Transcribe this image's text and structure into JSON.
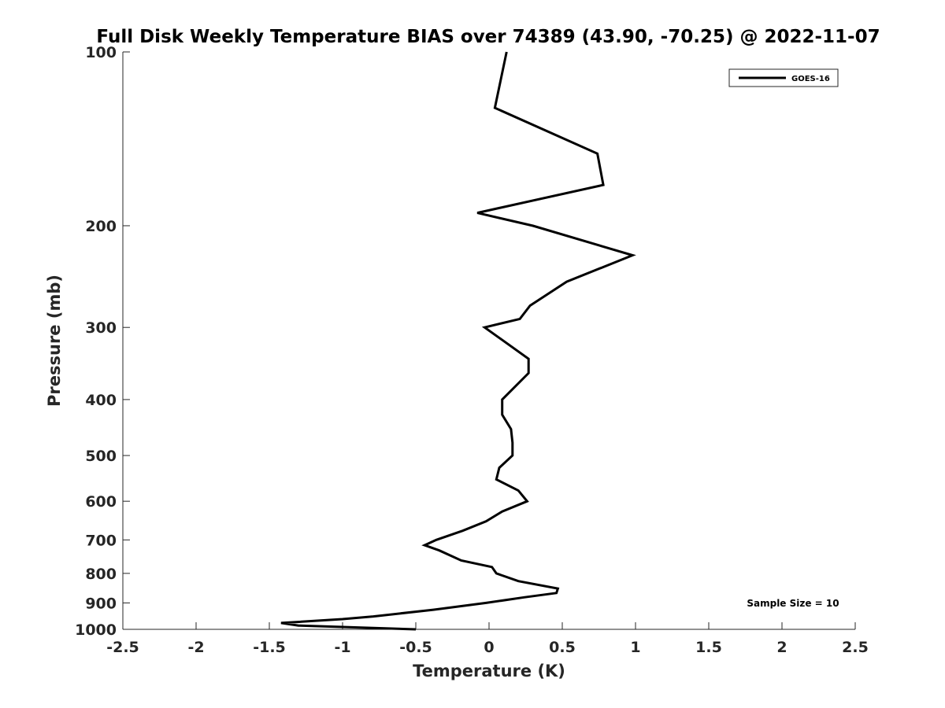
{
  "chart_data": {
    "type": "line",
    "title": "Full Disk Weekly Temperature BIAS over 74389 (43.90, -70.25) @ 2022-11-07",
    "xlabel": "Temperature (K)",
    "ylabel": "Pressure (mb)",
    "xlim": [
      -2.5,
      2.5
    ],
    "ylim": [
      100,
      1000
    ],
    "y_scale": "log",
    "y_reversed": true,
    "x_ticks": [
      "-2.5",
      "-2",
      "-1.5",
      "-1",
      "-0.5",
      "0",
      "0.5",
      "1",
      "1.5",
      "2",
      "2.5"
    ],
    "y_ticks": [
      "100",
      "200",
      "300",
      "400",
      "500",
      "600",
      "700",
      "800",
      "900",
      "1000"
    ],
    "grid": false,
    "legend_position": "top-right",
    "annotation": "Sample Size = 10",
    "series": [
      {
        "name": "GOES-16",
        "color": "#000000",
        "points": [
          {
            "x": 0.12,
            "y": 100
          },
          {
            "x": 0.04,
            "y": 125
          },
          {
            "x": 0.74,
            "y": 150
          },
          {
            "x": 0.78,
            "y": 170
          },
          {
            "x": -0.08,
            "y": 190
          },
          {
            "x": 0.3,
            "y": 200
          },
          {
            "x": 0.98,
            "y": 225
          },
          {
            "x": 0.53,
            "y": 250
          },
          {
            "x": 0.28,
            "y": 275
          },
          {
            "x": 0.21,
            "y": 290
          },
          {
            "x": -0.03,
            "y": 300
          },
          {
            "x": 0.27,
            "y": 340
          },
          {
            "x": 0.27,
            "y": 360
          },
          {
            "x": 0.09,
            "y": 400
          },
          {
            "x": 0.09,
            "y": 425
          },
          {
            "x": 0.15,
            "y": 450
          },
          {
            "x": 0.16,
            "y": 475
          },
          {
            "x": 0.16,
            "y": 500
          },
          {
            "x": 0.07,
            "y": 525
          },
          {
            "x": 0.05,
            "y": 550
          },
          {
            "x": 0.2,
            "y": 575
          },
          {
            "x": 0.26,
            "y": 600
          },
          {
            "x": 0.09,
            "y": 625
          },
          {
            "x": -0.02,
            "y": 650
          },
          {
            "x": -0.18,
            "y": 675
          },
          {
            "x": -0.36,
            "y": 700
          },
          {
            "x": -0.44,
            "y": 715
          },
          {
            "x": -0.34,
            "y": 730
          },
          {
            "x": -0.19,
            "y": 760
          },
          {
            "x": 0.02,
            "y": 780
          },
          {
            "x": 0.05,
            "y": 800
          },
          {
            "x": 0.2,
            "y": 825
          },
          {
            "x": 0.47,
            "y": 850
          },
          {
            "x": 0.46,
            "y": 865
          },
          {
            "x": 0.24,
            "y": 880
          },
          {
            "x": -0.02,
            "y": 900
          },
          {
            "x": -0.38,
            "y": 925
          },
          {
            "x": -0.79,
            "y": 950
          },
          {
            "x": -1.0,
            "y": 960
          },
          {
            "x": -1.42,
            "y": 975
          },
          {
            "x": -1.3,
            "y": 985
          },
          {
            "x": -0.5,
            "y": 1000
          }
        ]
      }
    ]
  }
}
